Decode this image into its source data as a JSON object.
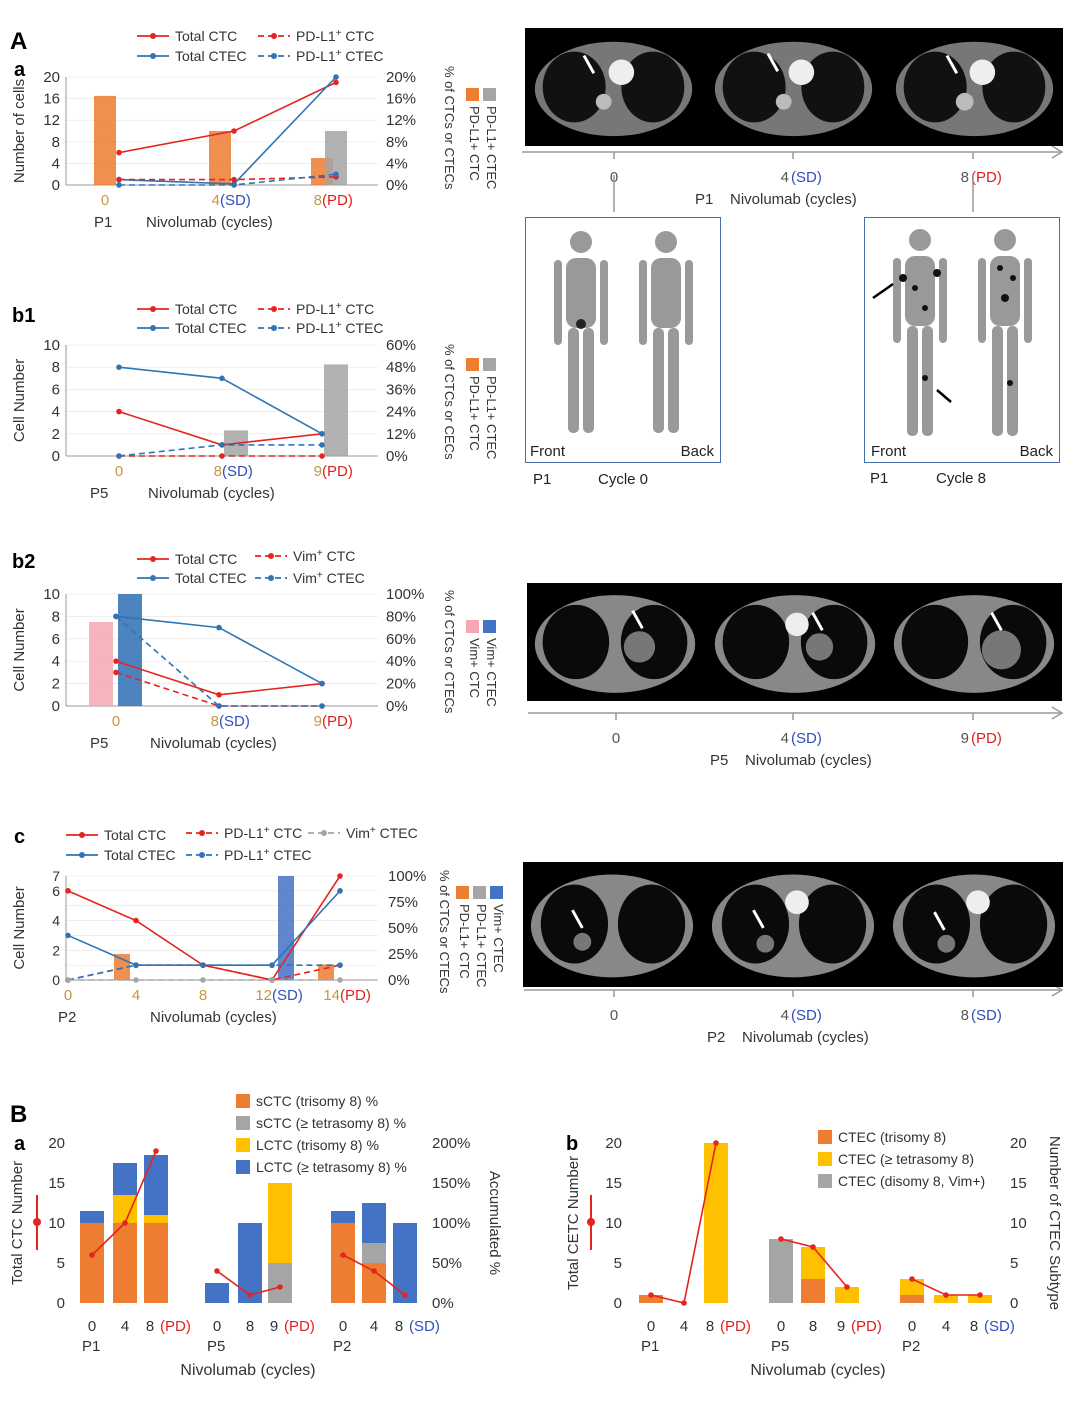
{
  "colors": {
    "red": "#e52420",
    "blue": "#2e75b6",
    "orange": "#ed7d31",
    "gray": "#a5a5a5",
    "gold": "#ffc000",
    "lblue": "#4472c4",
    "pink": "#f4a7b2",
    "dblue": "#2e6db4",
    "tan": "#c8963c",
    "sd": "#2f4fbf",
    "pd": "#e02020"
  },
  "section_labels": {
    "A": "A",
    "B": "B",
    "a": "a",
    "b1": "b1",
    "b2": "b2",
    "c": "c",
    "Ba": "a",
    "Bb": "b"
  },
  "ctA": {
    "panel_a": {
      "ticks": [
        "0",
        "4 ",
        "8 "
      ],
      "sd": "(SD)",
      "pd": "(PD)",
      "patient": "P1",
      "axis_label": "Nivolumab (cycles)"
    },
    "panel_b2": {
      "ticks": [
        "0",
        "4 ",
        "9 "
      ],
      "sd": "(SD)",
      "pd": "(PD)",
      "patient": "P5",
      "axis_label": "Nivolumab (cycles)"
    },
    "panel_c": {
      "ticks": [
        "0",
        "4 ",
        "8 "
      ],
      "sd": "(SD)",
      "sd2": "(SD)",
      "patient": "P2",
      "axis_label": "Nivolumab (cycles)"
    }
  },
  "bone": {
    "left": {
      "front": "Front",
      "back": "Back",
      "patient": "P1",
      "cycle": "Cycle 0"
    },
    "right": {
      "front": "Front",
      "back": "Back",
      "patient": "P1",
      "cycle": "Cycle 8"
    }
  },
  "chart_data": [
    {
      "id": "Aa",
      "type": "bar+line",
      "title": "",
      "patient": "P1",
      "xlabel": "Nivolumab (cycles)",
      "ylabel": "Number of cells",
      "y2label": "% of CTCs or CTECs",
      "categories": [
        "0",
        "4",
        "8"
      ],
      "category_status": [
        "",
        "SD",
        "PD"
      ],
      "ylim": [
        0,
        20
      ],
      "yticks": [
        0,
        4,
        8,
        12,
        16,
        20
      ],
      "y2ticks": [
        "0%",
        "4%",
        "8%",
        "12%",
        "16%",
        "20%"
      ],
      "series": [
        {
          "name": "Total CTC",
          "kind": "line",
          "values": [
            6,
            10,
            19
          ]
        },
        {
          "name": "Total CTEC",
          "kind": "line",
          "values": [
            1,
            0.2,
            20
          ]
        },
        {
          "name": "PD-L1+ CTC",
          "kind": "dashed",
          "values": [
            1,
            1,
            1.5
          ]
        },
        {
          "name": "PD-L1+ CTEC",
          "kind": "dashed",
          "values": [
            0,
            0,
            2
          ]
        },
        {
          "name": "PD-L1+ CTC %",
          "kind": "bar",
          "values": [
            16.5,
            10,
            5
          ]
        },
        {
          "name": "PD-L1+ CTEC %",
          "kind": "bar",
          "values": [
            0,
            0,
            10
          ]
        }
      ],
      "legend": [
        "Total CTC",
        "Total CTEC",
        "PD-L1+ CTC",
        "PD-L1+ CTEC"
      ],
      "legend_sup": [
        "",
        "",
        "+",
        "+"
      ],
      "y2legend": [
        "PD-L1+ CTC",
        "PD-L1+ CTEC"
      ]
    },
    {
      "id": "b1",
      "type": "bar+line",
      "patient": "P5",
      "xlabel": "Nivolumab (cycles)",
      "ylabel": "Cell Number",
      "y2label": "% of CTCs or CECs",
      "categories": [
        "0",
        "8",
        "9"
      ],
      "category_status": [
        "",
        "SD",
        "PD"
      ],
      "ylim": [
        0,
        10
      ],
      "yticks": [
        0,
        2,
        4,
        6,
        8,
        10
      ],
      "y2ticks": [
        "0%",
        "12%",
        "24%",
        "36%",
        "48%",
        "60%"
      ],
      "series": [
        {
          "name": "Total CTC",
          "kind": "line",
          "values": [
            4,
            1,
            2
          ]
        },
        {
          "name": "Total CTEC",
          "kind": "line",
          "values": [
            8,
            7,
            2
          ]
        },
        {
          "name": "PD-L1+ CTC",
          "kind": "dashed",
          "values": [
            0,
            0,
            0
          ]
        },
        {
          "name": "PD-L1+ CTEC",
          "kind": "dashed",
          "values": [
            0,
            1,
            1
          ]
        },
        {
          "name": "PD-L1+ CTEC %",
          "kind": "bar",
          "values": [
            0,
            14,
            50
          ]
        }
      ],
      "legend": [
        "Total CTC",
        "Total CTEC",
        "PD-L1+ CTC",
        "PD-L1+ CTEC"
      ],
      "legend_sup": [
        "",
        "",
        "+",
        "+"
      ],
      "y2legend": [
        "PD-L1+ CTC",
        "PD-L1+ CTEC"
      ]
    },
    {
      "id": "b2",
      "type": "bar+line",
      "patient": "P5",
      "xlabel": "Nivolumab (cycles)",
      "ylabel": "Cell Number",
      "y2label": "% of CTCs or CTECs",
      "categories": [
        "0",
        "8",
        "9"
      ],
      "category_status": [
        "",
        "SD",
        "PD"
      ],
      "ylim": [
        0,
        10
      ],
      "yticks": [
        0,
        2,
        4,
        6,
        8,
        10
      ],
      "y2ticks": [
        "0%",
        "20%",
        "40%",
        "60%",
        "80%",
        "100%"
      ],
      "series": [
        {
          "name": "Total CTC",
          "kind": "line",
          "values": [
            4,
            1,
            2
          ]
        },
        {
          "name": "Total CTEC",
          "kind": "line",
          "values": [
            8,
            7,
            2
          ]
        },
        {
          "name": "Vim+ CTC",
          "kind": "dashed",
          "values": [
            3,
            0,
            0
          ]
        },
        {
          "name": "Vim+ CTEC",
          "kind": "dashed",
          "values": [
            8,
            0,
            0
          ]
        },
        {
          "name": "Vim+ CTC %",
          "kind": "bar",
          "values": [
            75,
            0,
            0
          ]
        },
        {
          "name": "Vim+ CTEC %",
          "kind": "bar",
          "values": [
            100,
            0,
            0
          ]
        }
      ],
      "legend": [
        "Total CTC",
        "Total CTEC",
        "Vim+ CTC",
        "Vim+ CTEC"
      ],
      "legend_sup": [
        "",
        "",
        "+",
        "+"
      ],
      "y2legend": [
        "Vim+ CTC",
        "Vim+ CTEC"
      ]
    },
    {
      "id": "c",
      "type": "bar+line",
      "patient": "P2",
      "xlabel": "Nivolumab (cycles)",
      "ylabel": "Cell Number",
      "y2label": "% of CTCs or CTECs",
      "categories": [
        "0",
        "4",
        "8",
        "12",
        "14"
      ],
      "category_status": [
        "",
        "",
        "",
        "SD",
        "PD"
      ],
      "ylim": [
        0,
        7
      ],
      "yticks": [
        0,
        1,
        2,
        3,
        4,
        5,
        6,
        7
      ],
      "yticklabels": [
        "0",
        "2",
        "4",
        "6",
        "7"
      ],
      "y2ticks": [
        "0%",
        "25%",
        "50%",
        "75%",
        "100%"
      ],
      "series": [
        {
          "name": "Total CTC",
          "kind": "line",
          "values": [
            6,
            4,
            1,
            0,
            7
          ]
        },
        {
          "name": "Total CTEC",
          "kind": "line",
          "values": [
            3,
            1,
            1,
            1,
            6
          ]
        },
        {
          "name": "PD-L1+ CTC",
          "kind": "dashed",
          "values": [
            0,
            1,
            1,
            0,
            1
          ]
        },
        {
          "name": "PD-L1+ CTEC",
          "kind": "dashed",
          "values": [
            0,
            1,
            1,
            1,
            1
          ]
        },
        {
          "name": "Vim+ CTEC",
          "kind": "dashed",
          "values": [
            0,
            0,
            0,
            0,
            0
          ]
        },
        {
          "name": "PD-L1+ CTC %",
          "kind": "bar",
          "values": [
            0,
            25,
            0,
            0,
            15
          ]
        },
        {
          "name": "Vim+ CTEC %",
          "kind": "bar",
          "values": [
            0,
            0,
            0,
            100,
            0
          ]
        }
      ],
      "legend": [
        "Total CTC",
        "Total CTEC",
        "PD-L1+ CTC",
        "PD-L1+ CTEC",
        "Vim+ CTEC"
      ],
      "legend_sup": [
        "",
        "",
        "+",
        "+",
        "+"
      ],
      "y2legend": [
        "PD-L1+ CTC",
        "PD-L1+ CTEC",
        "Vim+ CTEC"
      ]
    },
    {
      "id": "Ba",
      "type": "stacked_bar",
      "xlabel": "Nivolumab (cycles)",
      "ylabel": "Total CTC  Number",
      "y2label": "Accumulated %",
      "groups": [
        "P1",
        "P5",
        "P2"
      ],
      "categories": [
        [
          "0",
          "4",
          "8 "
        ],
        [
          "0",
          "8",
          "9 "
        ],
        [
          "0",
          "4",
          "8 "
        ]
      ],
      "status": [
        [
          "",
          "",
          "PD"
        ],
        [
          "",
          "",
          "PD"
        ],
        [
          "",
          "",
          "SD"
        ]
      ],
      "ylim": [
        0,
        20
      ],
      "yticks": [
        "0",
        "5",
        "10",
        "15",
        "20"
      ],
      "y2ticks": [
        "0%",
        "50%",
        "100%",
        "150%",
        "200%"
      ],
      "stack_names": [
        "sCTC (trisomy 8) %",
        "sCTC (≥ tetrasomy 8) %",
        "LCTC (trisomy 8) %",
        "LCTC (≥ tetrasomy 8) %"
      ],
      "stacks": [
        [
          [
            10,
            0,
            0,
            1.5
          ],
          [
            10,
            0,
            3.5,
            4
          ],
          [
            10,
            0,
            1,
            7.5
          ]
        ],
        [
          [
            0,
            0,
            0,
            2.5
          ],
          [
            0,
            0,
            0,
            10
          ],
          [
            0,
            5,
            10,
            0
          ]
        ],
        [
          [
            10,
            0,
            0,
            1.5
          ],
          [
            5,
            2.5,
            0,
            5
          ],
          [
            0,
            0,
            0,
            10
          ]
        ]
      ],
      "line": [
        [
          6,
          10,
          19
        ],
        [
          4,
          1,
          2
        ],
        [
          6,
          4,
          1
        ]
      ]
    },
    {
      "id": "Bb",
      "type": "stacked_bar",
      "xlabel": "Nivolumab (cycles)",
      "ylabel": "Total CETC  Number",
      "y2label": "Number of  CTEC Subtype",
      "groups": [
        "P1",
        "P5",
        "P2"
      ],
      "categories": [
        [
          "0",
          "4",
          "8 "
        ],
        [
          "0",
          "8",
          "9 "
        ],
        [
          "0",
          "4",
          "8 "
        ]
      ],
      "status": [
        [
          "",
          "",
          "PD"
        ],
        [
          "",
          "",
          "PD"
        ],
        [
          "",
          "",
          "SD"
        ]
      ],
      "ylim": [
        0,
        20
      ],
      "yticks": [
        "0",
        "5",
        "10",
        "15",
        "20"
      ],
      "stack_names": [
        "CTEC (trisomy 8)",
        "CTEC (≥ tetrasomy 8)",
        "CTEC (disomy 8, Vim+)"
      ],
      "stacks": [
        [
          [
            1,
            0,
            0
          ],
          [
            0,
            0,
            0
          ],
          [
            0,
            20,
            0
          ]
        ],
        [
          [
            0,
            0,
            8
          ],
          [
            3,
            4,
            0
          ],
          [
            0,
            2,
            0
          ]
        ],
        [
          [
            1,
            2,
            0
          ],
          [
            0,
            1,
            0
          ],
          [
            0,
            1,
            0
          ]
        ]
      ],
      "line": [
        [
          1,
          0,
          20
        ],
        [
          8,
          7,
          2
        ],
        [
          3,
          1,
          1
        ]
      ]
    }
  ]
}
